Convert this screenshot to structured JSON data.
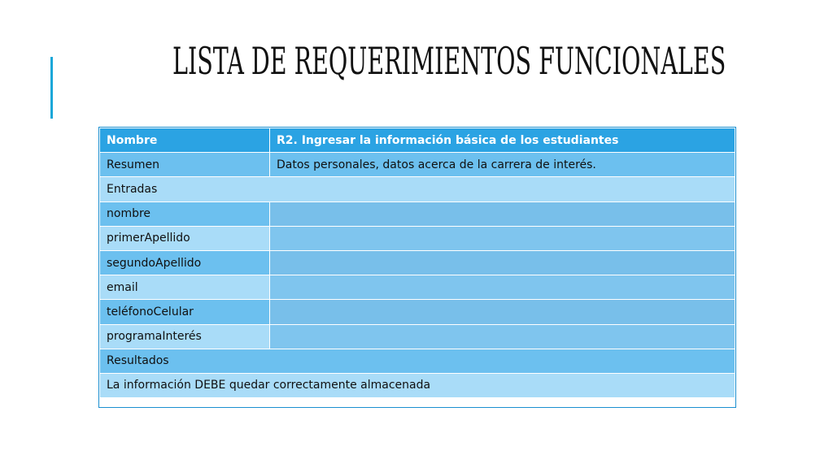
{
  "slide": {
    "title": "LISTA DE REQUERIMIENTOS FUNCIONALES",
    "accent_color": "#1aa7d9"
  },
  "table": {
    "header": {
      "label": "Nombre",
      "value": "R2. Ingresar la información básica de los estudiantes"
    },
    "summary": {
      "label": "Resumen",
      "value": "Datos personales, datos acerca de la carrera de interés."
    },
    "inputs_heading": "Entradas",
    "inputs": [
      "nombre",
      "primerApellido",
      "segundoApellido",
      "email",
      "teléfonoCelular",
      "programaInterés"
    ],
    "results_heading": "Resultados",
    "result": "La información DEBE quedar correctamente almacenada",
    "colors": {
      "header_bg": "#2ba3e3",
      "row_dark": "#6cc0ef",
      "row_light": "#a9dcf8"
    }
  }
}
